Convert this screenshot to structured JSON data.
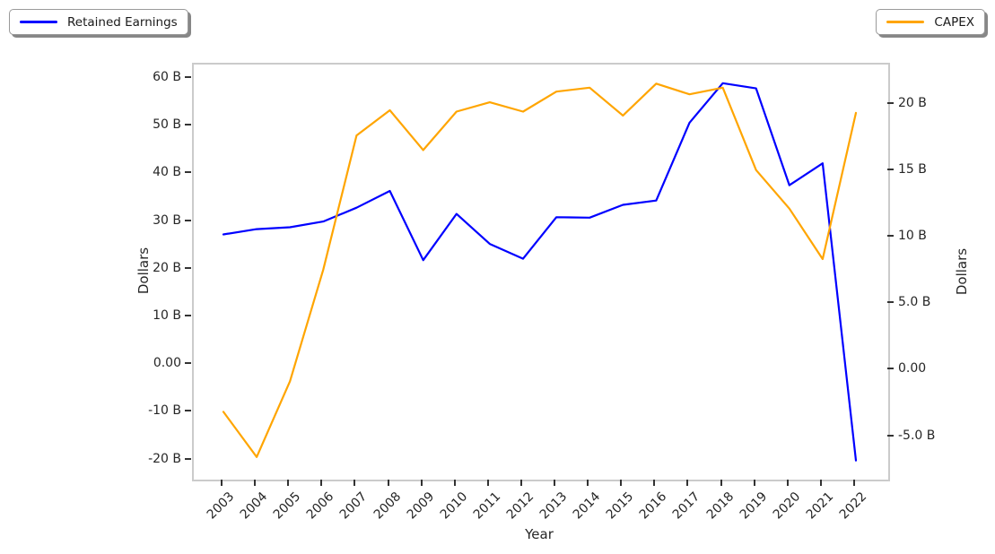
{
  "legend_left": {
    "label": "Retained Earnings"
  },
  "legend_right": {
    "label": "CAPEX"
  },
  "colors": {
    "retained_earnings": "#0000ff",
    "capex": "#ffa500",
    "spine": "#cbcbcb",
    "tick_text": "#262626"
  },
  "chart_data": {
    "type": "line",
    "x": [
      2003,
      2004,
      2005,
      2006,
      2007,
      2008,
      2009,
      2010,
      2011,
      2012,
      2013,
      2014,
      2015,
      2016,
      2017,
      2018,
      2019,
      2020,
      2021,
      2022
    ],
    "x_tick_labels": [
      "2003",
      "2004",
      "2005",
      "2006",
      "2007",
      "2008",
      "2009",
      "2010",
      "2011",
      "2012",
      "2013",
      "2014",
      "2015",
      "2016",
      "2017",
      "2018",
      "2019",
      "2020",
      "2021",
      "2022"
    ],
    "series": [
      {
        "name": "Retained Earnings",
        "axis": "left",
        "color": "#0000ff",
        "unit": "B",
        "values": [
          27.4,
          28.5,
          28.9,
          30.1,
          33.0,
          36.5,
          22.0,
          31.7,
          25.4,
          22.3,
          31.0,
          30.9,
          33.6,
          34.5,
          50.8,
          59.1,
          58.0,
          37.7,
          42.3,
          -20.0
        ]
      },
      {
        "name": "CAPEX",
        "axis": "right",
        "color": "#ffa500",
        "unit": "B",
        "values": [
          -3.1,
          -6.5,
          -0.8,
          7.6,
          17.7,
          19.6,
          16.6,
          19.5,
          20.2,
          19.5,
          21.0,
          21.3,
          19.2,
          21.6,
          20.8,
          21.3,
          15.1,
          12.2,
          8.4,
          19.4
        ]
      }
    ],
    "title": "",
    "xlabel": "Year",
    "ylabel_left": "Dollars",
    "ylabel_right": "Dollars",
    "left_ticks": [
      {
        "label": "60 B",
        "value": 60
      },
      {
        "label": "50 B",
        "value": 50
      },
      {
        "label": "40 B",
        "value": 40
      },
      {
        "label": "30 B",
        "value": 30
      },
      {
        "label": "20 B",
        "value": 20
      },
      {
        "label": "10 B",
        "value": 10
      },
      {
        "label": "0.00",
        "value": 0
      },
      {
        "label": "-10 B",
        "value": -10
      },
      {
        "label": "-20 B",
        "value": -20
      }
    ],
    "right_ticks": [
      {
        "label": "20 B",
        "value": 20
      },
      {
        "label": "15 B",
        "value": 15
      },
      {
        "label": "10 B",
        "value": 10
      },
      {
        "label": "5.0 B",
        "value": 5
      },
      {
        "label": "0.00",
        "value": 0
      },
      {
        "label": "-5.0 B",
        "value": -5
      }
    ],
    "x_range": [
      2002.11,
      2022.97
    ],
    "left_range": [
      -24.0,
      63.0
    ],
    "right_range": [
      -8.2,
      23.04
    ],
    "grid": false,
    "legend_position": "outside-top-corners"
  }
}
